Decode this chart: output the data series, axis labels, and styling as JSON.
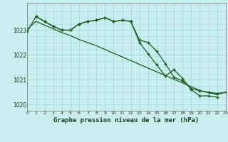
{
  "background_color": "#c8eef0",
  "grid_color": "#a8d8da",
  "line_color": "#1a5c1a",
  "title": "Graphe pression niveau de la mer (hPa)",
  "xlim": [
    0,
    23
  ],
  "ylim": [
    1019.75,
    1024.1
  ],
  "yticks": [
    1020,
    1021,
    1022,
    1023
  ],
  "xticks": [
    0,
    1,
    2,
    3,
    4,
    5,
    6,
    7,
    8,
    9,
    10,
    11,
    12,
    13,
    14,
    15,
    16,
    17,
    18,
    19,
    20,
    21,
    22,
    23
  ],
  "line1_x": [
    0,
    1,
    2,
    3,
    4,
    5,
    6,
    7,
    8,
    9,
    10,
    11,
    12,
    13,
    14,
    15,
    16,
    17,
    18,
    19,
    20,
    21,
    22,
    23
  ],
  "line1_y": [
    1022.95,
    1023.55,
    1023.35,
    1023.15,
    1023.0,
    1023.0,
    1023.25,
    1023.35,
    1023.4,
    1023.5,
    1023.35,
    1023.4,
    1023.35,
    1022.6,
    1022.5,
    1022.15,
    1021.65,
    1021.1,
    1020.95,
    1020.65,
    1020.55,
    1020.5,
    1020.45,
    1020.5
  ],
  "line2_x": [
    0,
    1,
    2,
    3,
    4,
    5,
    6,
    7,
    8,
    9,
    10,
    11,
    12,
    13,
    14,
    15,
    16,
    17,
    18,
    19,
    20,
    21,
    22,
    23
  ],
  "line2_y": [
    1023.05,
    1023.35,
    1023.2,
    1023.05,
    1022.9,
    1022.78,
    1022.62,
    1022.5,
    1022.37,
    1022.22,
    1022.07,
    1021.92,
    1021.77,
    1021.62,
    1021.47,
    1021.32,
    1021.17,
    1021.02,
    1020.87,
    1020.72,
    1020.57,
    1020.48,
    1020.4,
    1020.5
  ],
  "line3_x": [
    1,
    2,
    3,
    4,
    5,
    6,
    7,
    8,
    9,
    10,
    11,
    12,
    13,
    14,
    15,
    16,
    17,
    18,
    19,
    20,
    21,
    22
  ],
  "line3_y": [
    1023.55,
    1023.35,
    1023.15,
    1023.0,
    1023.0,
    1023.25,
    1023.35,
    1023.4,
    1023.5,
    1023.35,
    1023.4,
    1023.35,
    1022.5,
    1022.05,
    1021.6,
    1021.15,
    1021.4,
    1021.05,
    1020.6,
    1020.35,
    1020.35,
    1020.3
  ],
  "fig_width": 3.2,
  "fig_height": 2.0,
  "dpi": 100
}
